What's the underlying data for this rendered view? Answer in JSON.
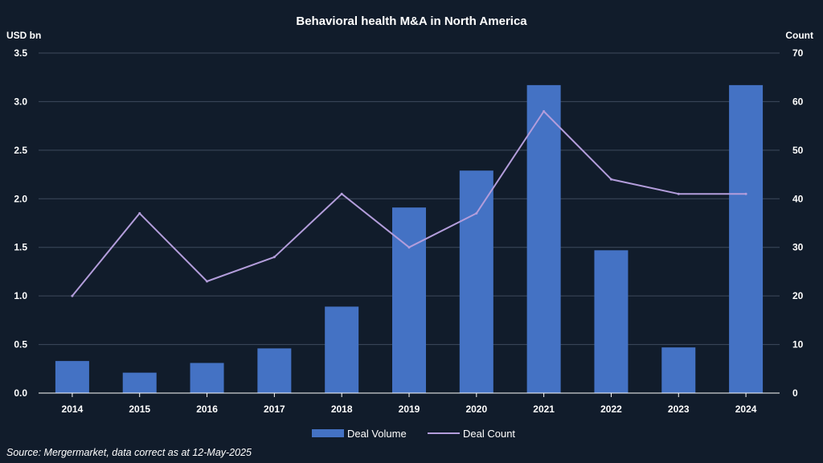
{
  "chart_data": {
    "type": "bar",
    "title": "Behavioral health M&A in North America",
    "ylabel_left": "USD bn",
    "ylabel_right": "Count",
    "categories": [
      "2014",
      "2015",
      "2016",
      "2017",
      "2018",
      "2019",
      "2020",
      "2021",
      "2022",
      "2023",
      "2024"
    ],
    "series": [
      {
        "name": "Deal Volume",
        "type": "bar",
        "axis": "left",
        "color": "#4472c4",
        "values": [
          0.33,
          0.21,
          0.31,
          0.46,
          0.89,
          1.91,
          2.29,
          3.17,
          1.47,
          0.47,
          3.17
        ]
      },
      {
        "name": "Deal Count",
        "type": "line",
        "axis": "right",
        "color": "#b39ddb",
        "values": [
          20,
          37,
          23,
          28,
          41,
          30,
          37,
          58,
          44,
          41,
          41
        ]
      }
    ],
    "ylim_left": [
      0,
      3.5
    ],
    "yticks_left": [
      "0.0",
      "0.5",
      "1.0",
      "1.5",
      "2.0",
      "2.5",
      "3.0",
      "3.5"
    ],
    "ylim_right": [
      0,
      70
    ],
    "yticks_right": [
      "0",
      "10",
      "20",
      "30",
      "40",
      "50",
      "60",
      "70"
    ],
    "grid": true,
    "legend_position": "bottom-center"
  },
  "source": "Source: Mergermarket, data correct as at 12-May-2025"
}
